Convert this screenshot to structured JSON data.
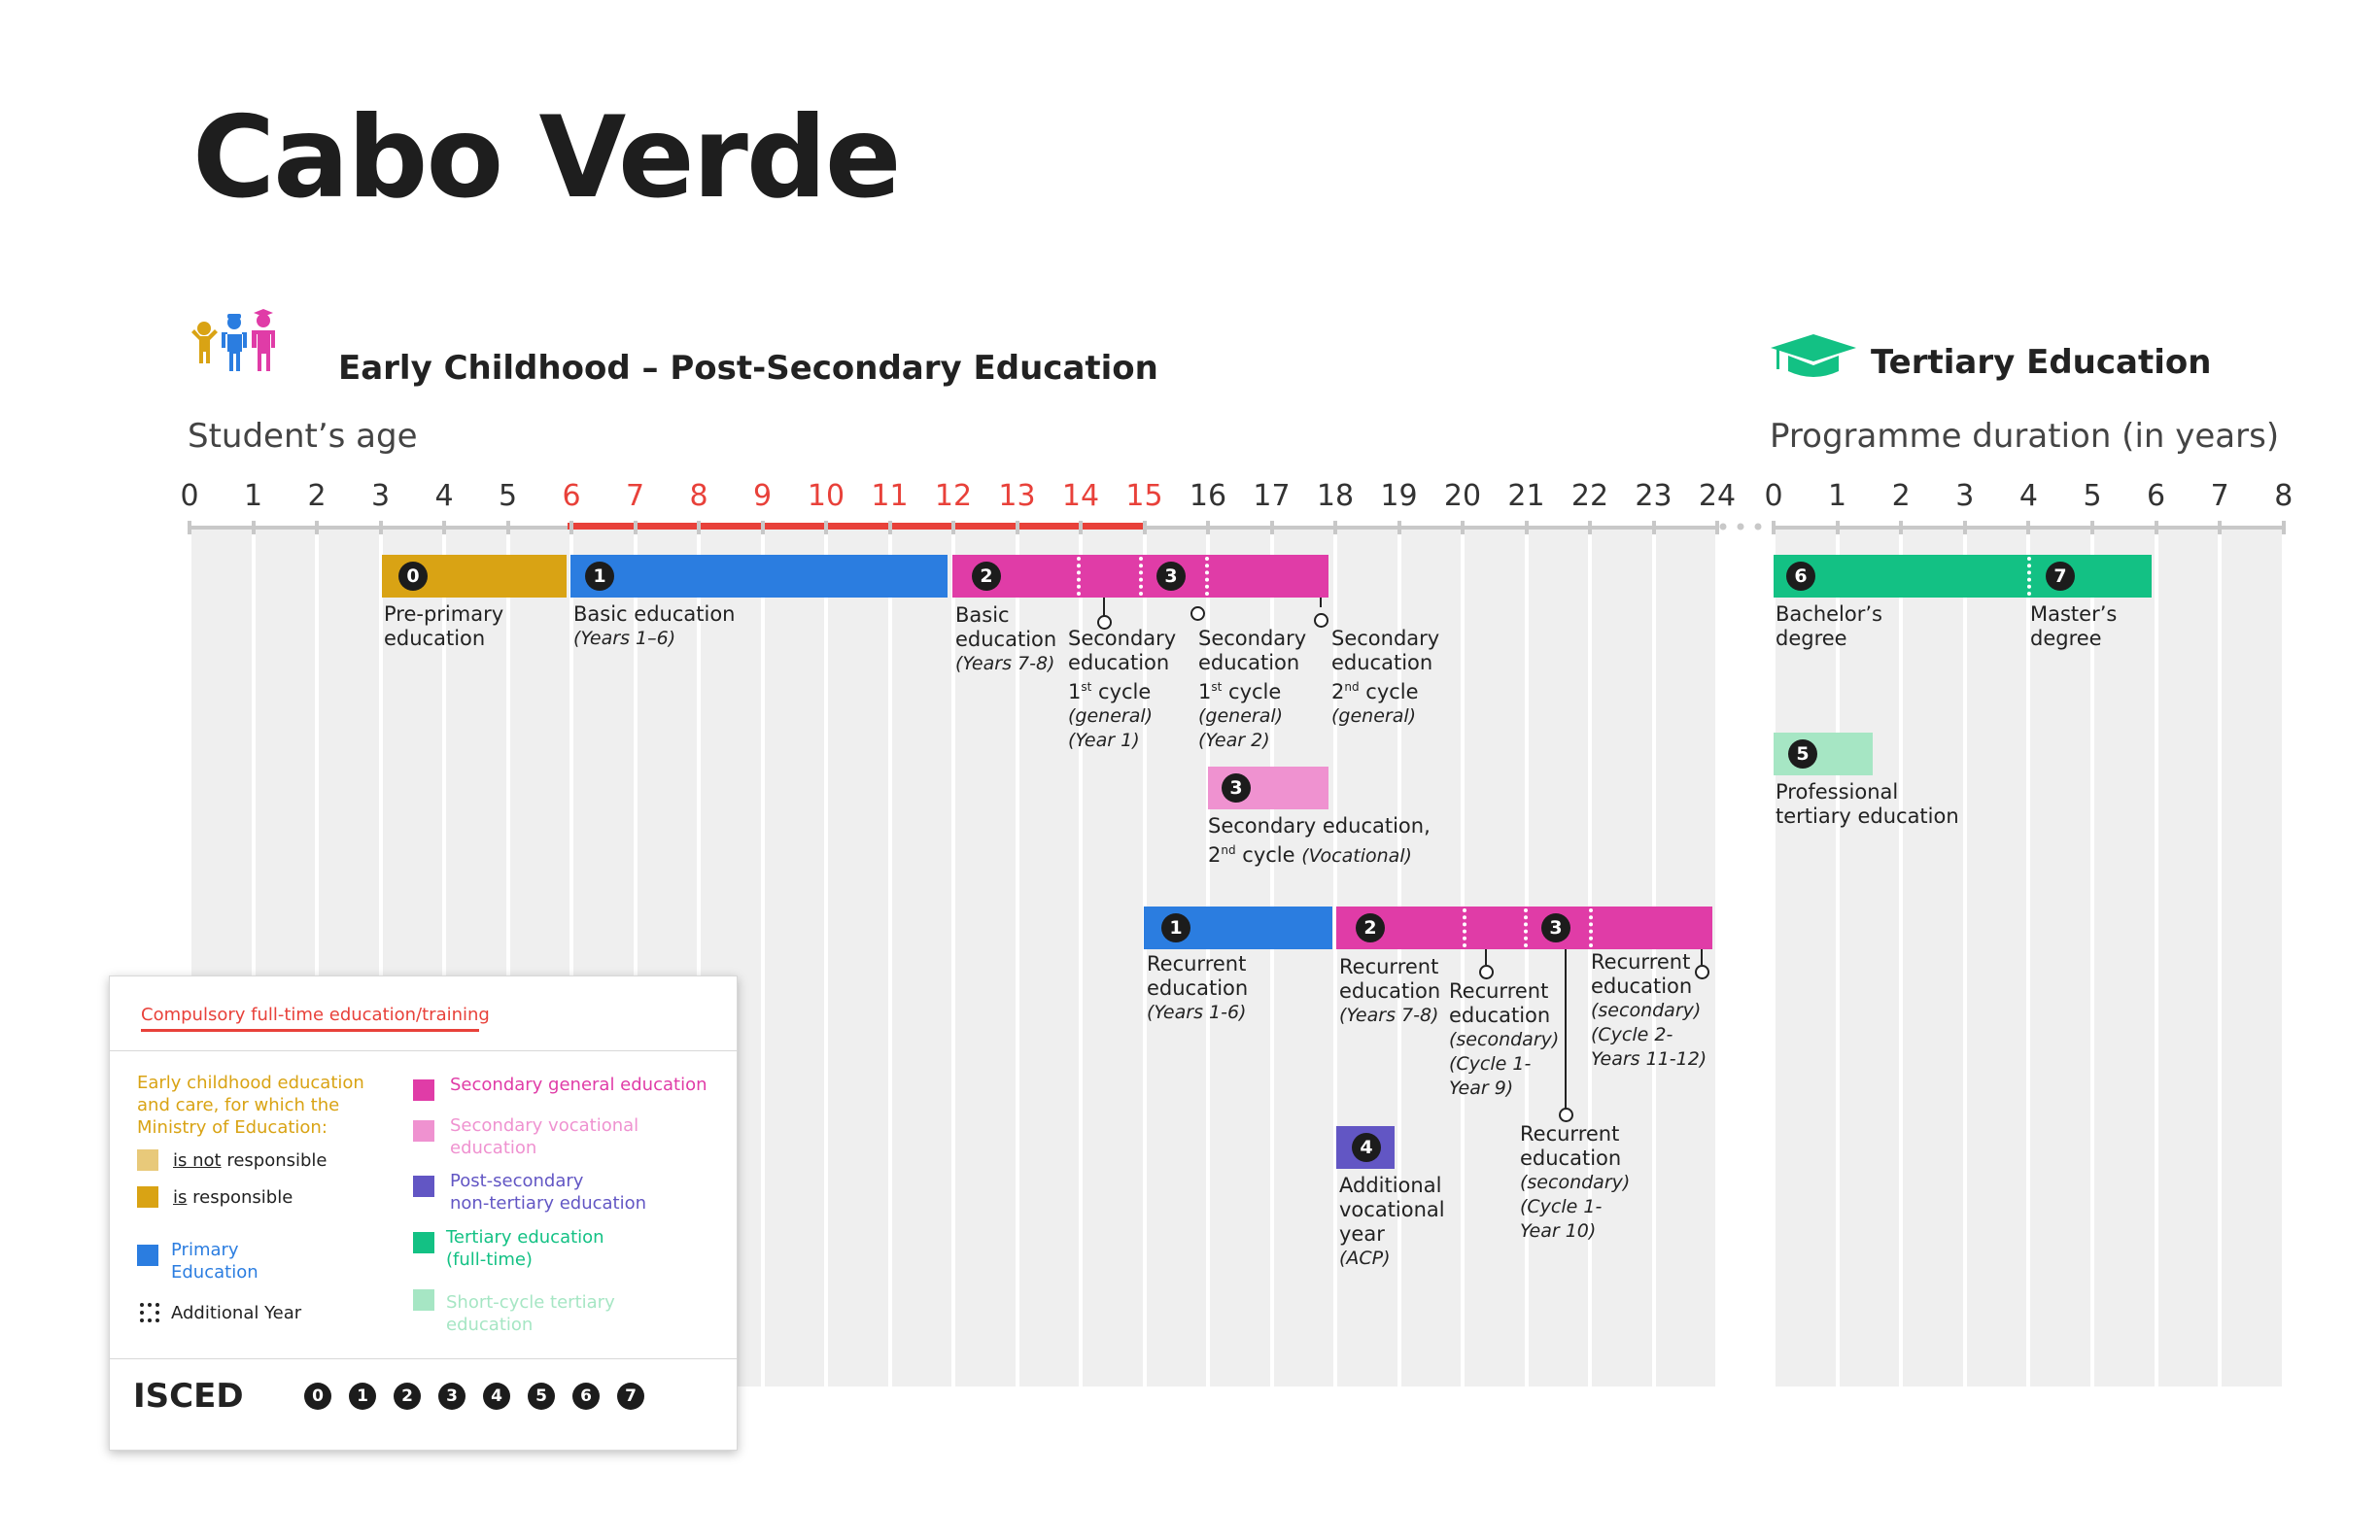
{
  "title": "Cabo Verde",
  "left_section": {
    "heading": "Early Childhood – Post-Secondary Education",
    "axis_label": "Student’s age",
    "ticks": [
      "0",
      "1",
      "2",
      "3",
      "4",
      "5",
      "6",
      "7",
      "8",
      "9",
      "10",
      "11",
      "12",
      "13",
      "14",
      "15",
      "16",
      "17",
      "18",
      "19",
      "20",
      "21",
      "22",
      "23",
      "24"
    ]
  },
  "right_section": {
    "heading": "Tertiary Education",
    "axis_label": "Programme duration (in years)",
    "ticks": [
      "0",
      "1",
      "2",
      "3",
      "4",
      "5",
      "6",
      "7",
      "8"
    ]
  },
  "compulsory_range_ages": [
    6,
    15
  ],
  "colors": {
    "early_childhood": "#d9a314",
    "early_childhood_light": "#e8c97a",
    "primary": "#2b7de0",
    "secondary_general": "#e03ca7",
    "secondary_vocational": "#ef92d0",
    "post_secondary": "#6256c4",
    "tertiary": "#13c184",
    "short_cycle_tertiary": "#a6e6c4",
    "compulsory": "#e8413a",
    "grid": "#efefef"
  },
  "programmes": {
    "pre_primary": {
      "isced": "0",
      "line1": "Pre-primary",
      "line2": "education"
    },
    "basic_primary": {
      "isced": "1",
      "line1": "Basic education",
      "note": "(Years 1–6)"
    },
    "basic_secondary": {
      "isced": "2",
      "line1": "Basic",
      "line2": "education",
      "note": "(Years 7-8)"
    },
    "sec_c1_y1": {
      "isced": "3",
      "line1": "Secondary",
      "line2": "education",
      "line3_a": "1",
      "line3_sup": "st",
      "line3_b": " cycle",
      "note1": "(general)",
      "note2": "(Year 1)"
    },
    "sec_c1_y2": {
      "line1": "Secondary",
      "line2": "education",
      "line3_a": "1",
      "line3_sup": "st",
      "line3_b": " cycle",
      "note1": "(general)",
      "note2": "(Year 2)"
    },
    "sec_c2_gen": {
      "line1": "Secondary",
      "line2": "education",
      "line3_a": "2",
      "line3_sup": "nd",
      "line3_b": " cycle",
      "note1": "(general)"
    },
    "sec_voc": {
      "isced": "3",
      "line1": "Secondary education,",
      "line2_a": "2",
      "line2_sup": "nd",
      "line2_b": " cycle ",
      "note": "(Vocational)"
    },
    "recurrent_primary": {
      "isced": "1",
      "line1": "Recurrent",
      "line2": "education",
      "note": "(Years 1-6)"
    },
    "recurrent_basic": {
      "isced": "2",
      "line1": "Recurrent",
      "line2": "education",
      "note": "(Years 7-8)"
    },
    "recurrent_sec_c1y9": {
      "line1": "Recurrent",
      "line2": "education",
      "note1": "(secondary)",
      "note2": "(Cycle 1-",
      "note3": "Year 9)"
    },
    "recurrent_sec_c1y10": {
      "isced": "3",
      "line1": "Recurrent",
      "line2": "education",
      "note1": "(secondary)",
      "note2": "(Cycle 1-",
      "note3": "Year 10)"
    },
    "recurrent_sec_c2": {
      "line1": "Recurrent",
      "line2": "education",
      "note1": "(secondary)",
      "note2": "(Cycle 2-",
      "note3": "Years 11-12)"
    },
    "acp": {
      "isced": "4",
      "line1": "Additional",
      "line2": "vocational",
      "line3": "year",
      "note": "(ACP)"
    },
    "bachelor": {
      "isced": "6",
      "line1": "Bachelor’s",
      "line2": "degree"
    },
    "master": {
      "isced": "7",
      "line1": "Master’s",
      "line2": "degree"
    },
    "professional": {
      "isced": "5",
      "line1": "Professional",
      "line2": "tertiary education"
    }
  },
  "legend": {
    "compulsory": "Compulsory full-time education/training",
    "ec_l1": "Early childhood education",
    "ec_l2": "and care, for which the",
    "ec_l3": "Ministry of Education:",
    "not_resp_a": "is not",
    "not_resp_b": " responsible",
    "resp_a": "is",
    "resp_b": " responsible",
    "primary_l1": "Primary",
    "primary_l2": "Education",
    "additional_year": "Additional Year",
    "sec_gen": "Secondary general education",
    "sec_voc_l1": "Secondary vocational",
    "sec_voc_l2": "education",
    "post_l1": "Post-secondary",
    "post_l2": "non-tertiary education",
    "tert_l1": "Tertiary education",
    "tert_l2": "(full-time)",
    "short_l1": "Short-cycle tertiary",
    "short_l2": "education",
    "isced_label": "ISCED",
    "isced_levels": [
      "0",
      "1",
      "2",
      "3",
      "4",
      "5",
      "6",
      "7"
    ]
  }
}
